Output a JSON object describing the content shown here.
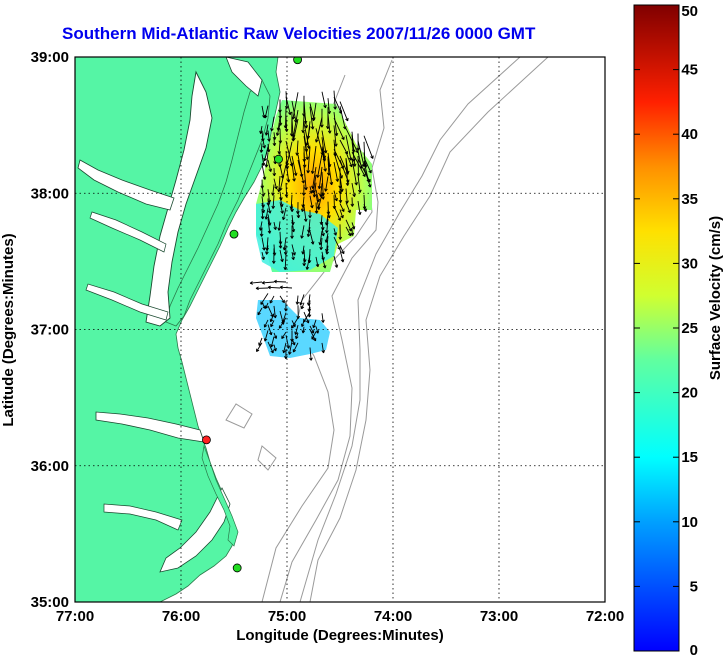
{
  "title": "Southern Mid-Atlantic Raw Velocities 2007/11/26 0000 GMT",
  "x_axis": {
    "label": "Longitude (Degrees:Minutes)",
    "ticks": [
      "77:00",
      "76:00",
      "75:00",
      "74:00",
      "73:00",
      "72:00"
    ],
    "range": [
      -77,
      -72
    ]
  },
  "y_axis": {
    "label": "Latitude (Degrees:Minutes)",
    "ticks": [
      "39:00",
      "38:00",
      "37:00",
      "36:00",
      "35:00"
    ],
    "range": [
      35,
      39
    ]
  },
  "colorbar": {
    "label": "Surface Velocity (cm/s)",
    "ticks": [
      "50",
      "45",
      "40",
      "35",
      "30",
      "25",
      "20",
      "15",
      "10",
      "5",
      "0"
    ],
    "range": [
      0,
      50
    ],
    "colormap": "jet"
  },
  "grid": "dotted",
  "colors": {
    "land": "#55f5a5",
    "water": "#ffffff",
    "bathymetry_contours": "#9a9a9a",
    "title": "#0000ee",
    "station_active": "#22dd22",
    "station_inactive": "#ff2222"
  },
  "stations": [
    {
      "status": "active",
      "lon": -74.9,
      "lat": 38.98
    },
    {
      "status": "active",
      "lon": -75.08,
      "lat": 38.25
    },
    {
      "status": "active",
      "lon": -75.5,
      "lat": 37.7
    },
    {
      "status": "inactive",
      "lon": -75.76,
      "lat": 36.19
    },
    {
      "status": "active",
      "lon": -75.47,
      "lat": 35.25
    }
  ]
}
